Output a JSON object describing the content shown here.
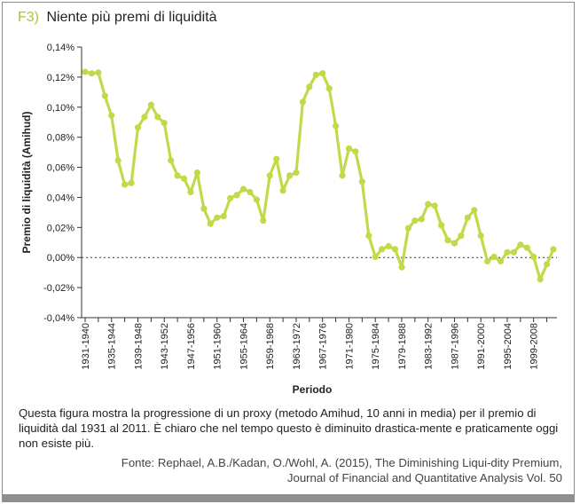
{
  "figure": {
    "label": "F3)",
    "title": "Niente più premi di liquidità"
  },
  "caption": "Questa figura mostra la progressione di un proxy (metodo Amihud, 10 anni in media) per il premio di liquidità dal 1931 al 2011. È chiaro che nel tempo questo è diminuito drastica-mente e praticamente oggi non esiste più.",
  "source": "Fonte: Rephael, A.B./Kadan, O./Wohl, A. (2015), The Diminishing Liqui-dity Premium, Journal of Financial and Quantitative Analysis Vol. 50",
  "colors": {
    "line": "#c5d84a",
    "label_accent": "#a7c43a",
    "axis": "#333333",
    "bottom_bar": "#8f8f8f"
  },
  "chart_data": {
    "type": "line",
    "xlabel": "Periodo",
    "ylabel": "Premio di liquidità (Amihud)",
    "ylim": [
      -0.04,
      0.14
    ],
    "y_ticks": [
      "-0,04%",
      "-0,02%",
      "0,00%",
      "0,02%",
      "0,04%",
      "0,06%",
      "0,08%",
      "0,10%",
      "0,12%",
      "0,14%"
    ],
    "y_tick_values": [
      -0.04,
      -0.02,
      0.0,
      0.02,
      0.04,
      0.06,
      0.08,
      0.1,
      0.12,
      0.14
    ],
    "x_tick_labels": [
      "1931-1940",
      "1935-1944",
      "1939-1948",
      "1943-1952",
      "1947-1956",
      "1951-1960",
      "1955-1964",
      "1959-1968",
      "1963-1972",
      "1967-1976",
      "1971-1980",
      "1975-1984",
      "1979-1988",
      "1983-1992",
      "1987-1996",
      "1991-2000",
      "1995-2004",
      "1999-2008"
    ],
    "x_start_years": [
      1931,
      1932,
      1933,
      1934,
      1935,
      1936,
      1937,
      1938,
      1939,
      1940,
      1941,
      1942,
      1943,
      1944,
      1945,
      1946,
      1947,
      1948,
      1949,
      1950,
      1951,
      1952,
      1953,
      1954,
      1955,
      1956,
      1957,
      1958,
      1959,
      1960,
      1961,
      1962,
      1963,
      1964,
      1965,
      1966,
      1967,
      1968,
      1969,
      1970,
      1971,
      1972,
      1973,
      1974,
      1975,
      1976,
      1977,
      1978,
      1979,
      1980,
      1981,
      1982,
      1983,
      1984,
      1985,
      1986,
      1987,
      1988,
      1989,
      1990,
      1991,
      1992,
      1993,
      1994,
      1995,
      1996,
      1997,
      1998,
      1999,
      2000,
      2001,
      2002
    ],
    "series": [
      {
        "values": [
          0.1235,
          0.1225,
          0.123,
          0.1075,
          0.0945,
          0.0645,
          0.0485,
          0.0495,
          0.0865,
          0.0935,
          0.1015,
          0.0935,
          0.0895,
          0.0645,
          0.0545,
          0.0525,
          0.0435,
          0.0565,
          0.0325,
          0.0225,
          0.0265,
          0.0275,
          0.0395,
          0.0415,
          0.0455,
          0.0435,
          0.0385,
          0.0245,
          0.0545,
          0.0655,
          0.0445,
          0.0545,
          0.0565,
          0.1035,
          0.1135,
          0.1215,
          0.1225,
          0.1125,
          0.0875,
          0.0545,
          0.0725,
          0.0705,
          0.0505,
          0.0145,
          0.0005,
          0.0055,
          0.0075,
          0.0055,
          -0.0065,
          0.0195,
          0.0245,
          0.0255,
          0.0355,
          0.0345,
          0.0215,
          0.0115,
          0.0095,
          0.0145,
          0.0265,
          0.0315,
          0.0145,
          -0.0025,
          0.0005,
          -0.0025,
          0.0035,
          0.0035,
          0.0085,
          0.0065,
          0.0005,
          -0.0145,
          -0.0045,
          0.0055
        ]
      }
    ],
    "grid": false
  }
}
